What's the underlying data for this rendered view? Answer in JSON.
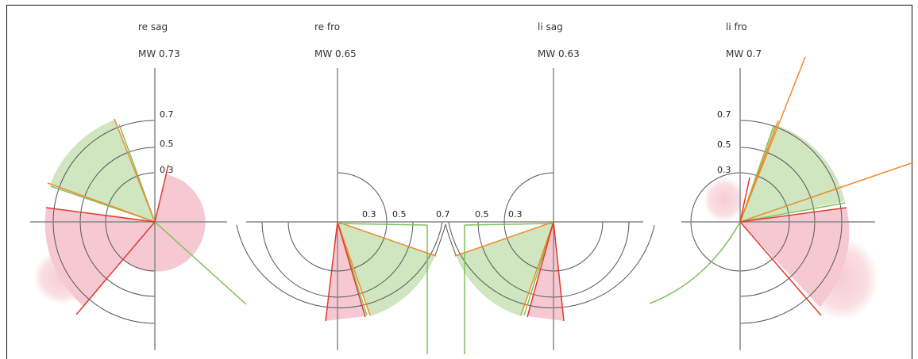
{
  "panels": [
    {
      "title": "re sag",
      "mw": "MW 0.73"
    },
    {
      "title": "re fro",
      "mw": "MW 0.65"
    },
    {
      "title": "li sag",
      "mw": "MW 0.63"
    },
    {
      "title": "li fro",
      "mw": "MW 0.7"
    }
  ],
  "ring_labels": {
    "p1": [
      "0.7",
      "0.5",
      "0.3"
    ],
    "p4": [
      "0.7",
      "0.5",
      "0.3"
    ],
    "center_left": [
      "0.3",
      "0.5"
    ],
    "center_mid": "0.7",
    "center_right": [
      "0.5",
      "0.3"
    ]
  },
  "colors": {
    "green_fill": "#cfe6c0",
    "pink_fill": "#f6c9d2",
    "green_line": "#7fc05a",
    "orange_line": "#f08a2a",
    "red_line": "#e23a2a",
    "ring": "#555555",
    "axis": "#888888"
  }
}
